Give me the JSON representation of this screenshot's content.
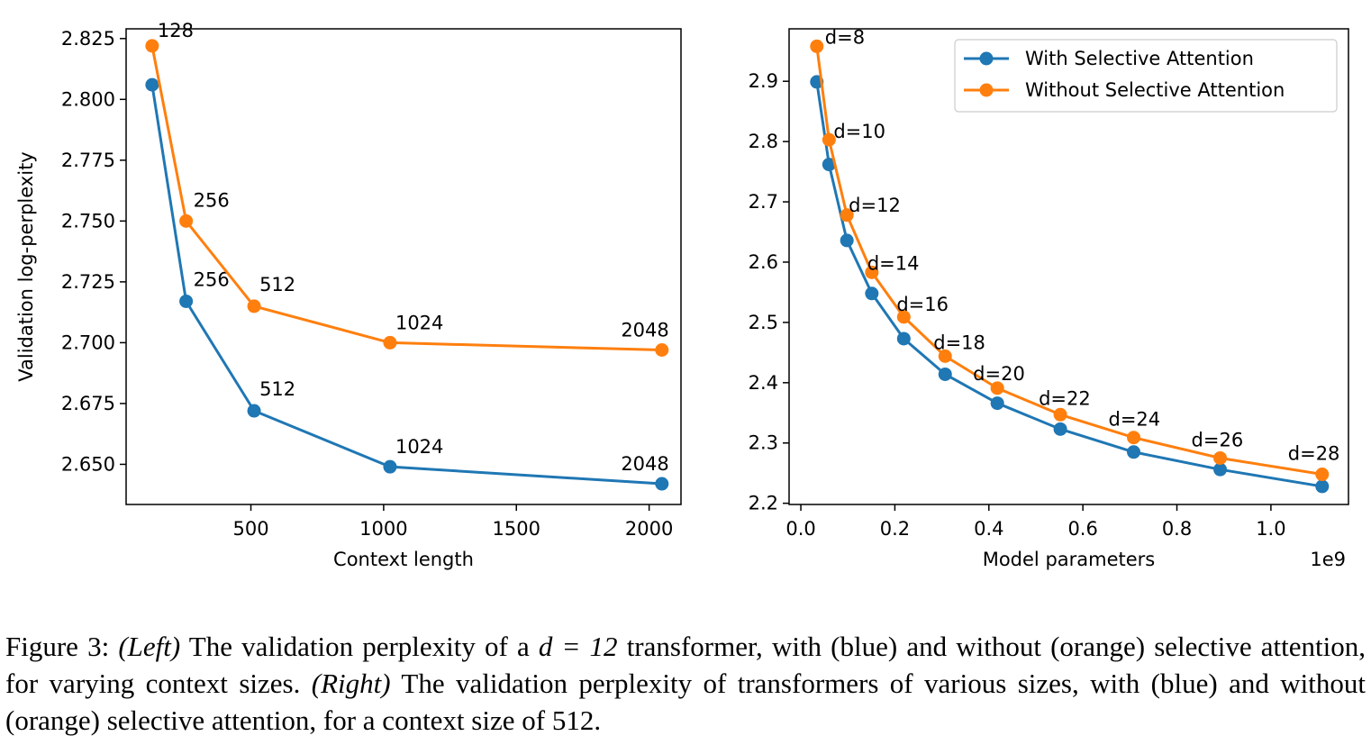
{
  "chart_data": [
    {
      "type": "line",
      "xlabel": "Context length",
      "ylabel": "Validation log-perplexity",
      "xlim": [
        30,
        2120
      ],
      "ylim": [
        2.6335,
        2.829
      ],
      "xticks": [
        500,
        1000,
        1500,
        2000
      ],
      "xtick_labels": [
        "500",
        "1000",
        "1500",
        "2000"
      ],
      "yticks": [
        2.65,
        2.675,
        2.7,
        2.725,
        2.75,
        2.775,
        2.8,
        2.825
      ],
      "ytick_labels": [
        "2.650",
        "2.675",
        "2.700",
        "2.725",
        "2.750",
        "2.775",
        "2.800",
        "2.825"
      ],
      "grid": false,
      "legend": "none",
      "series": [
        {
          "color": "#1f77b4",
          "x": [
            128,
            256,
            512,
            1024,
            2048
          ],
          "y": [
            2.806,
            2.717,
            2.672,
            2.649,
            2.642
          ],
          "point_labels": [
            "",
            "256",
            "512",
            "1024",
            "2048"
          ]
        },
        {
          "color": "#ff7f0e",
          "x": [
            128,
            256,
            512,
            1024,
            2048
          ],
          "y": [
            2.822,
            2.75,
            2.715,
            2.7,
            2.697
          ],
          "point_labels": [
            "128",
            "256",
            "512",
            "1024",
            "2048"
          ]
        }
      ]
    },
    {
      "type": "line",
      "xlabel": "Model parameters",
      "x_offset_label": "1e9",
      "ylabel": "",
      "xlim": [
        -0.025,
        1.165
      ],
      "ylim": [
        2.198,
        2.987
      ],
      "xticks": [
        0.0,
        0.2,
        0.4,
        0.6,
        0.8,
        1.0
      ],
      "xtick_labels": [
        "0.0",
        "0.2",
        "0.4",
        "0.6",
        "0.8",
        "1.0"
      ],
      "yticks": [
        2.2,
        2.3,
        2.4,
        2.5,
        2.6,
        2.7,
        2.8,
        2.9
      ],
      "ytick_labels": [
        "2.2",
        "2.3",
        "2.4",
        "2.5",
        "2.6",
        "2.7",
        "2.8",
        "2.9"
      ],
      "grid": false,
      "legend": "top-right",
      "series": [
        {
          "name": "With Selective Attention",
          "color": "#1f77b4",
          "x": [
            0.034,
            0.06,
            0.098,
            0.151,
            0.219,
            0.307,
            0.418,
            0.552,
            0.708,
            0.892,
            1.109
          ],
          "y": [
            2.899,
            2.762,
            2.636,
            2.548,
            2.473,
            2.414,
            2.366,
            2.323,
            2.285,
            2.256,
            2.228
          ],
          "point_labels": []
        },
        {
          "name": "Without Selective Attention",
          "color": "#ff7f0e",
          "x": [
            0.034,
            0.06,
            0.098,
            0.151,
            0.219,
            0.307,
            0.418,
            0.552,
            0.708,
            0.892,
            1.109
          ],
          "y": [
            2.958,
            2.803,
            2.678,
            2.583,
            2.509,
            2.444,
            2.391,
            2.347,
            2.309,
            2.275,
            2.248
          ],
          "point_labels": [
            "d=8",
            "d=10",
            "d=12",
            "d=14",
            "d=16",
            "d=18",
            "d=20",
            "d=22",
            "d=24",
            "d=26",
            "d=28"
          ]
        }
      ]
    }
  ],
  "caption": {
    "prefix": "Figure 3: ",
    "left_tag": "(Left)",
    "part1": " The validation perplexity of a ",
    "math": "d = 12",
    "part2": " transformer, with (blue) and without (orange) selective attention, for varying context sizes. ",
    "right_tag": "(Right)",
    "part3": " The validation perplexity of transformers of various sizes, with (blue) and without (orange) selective attention, for a context size of 512."
  }
}
